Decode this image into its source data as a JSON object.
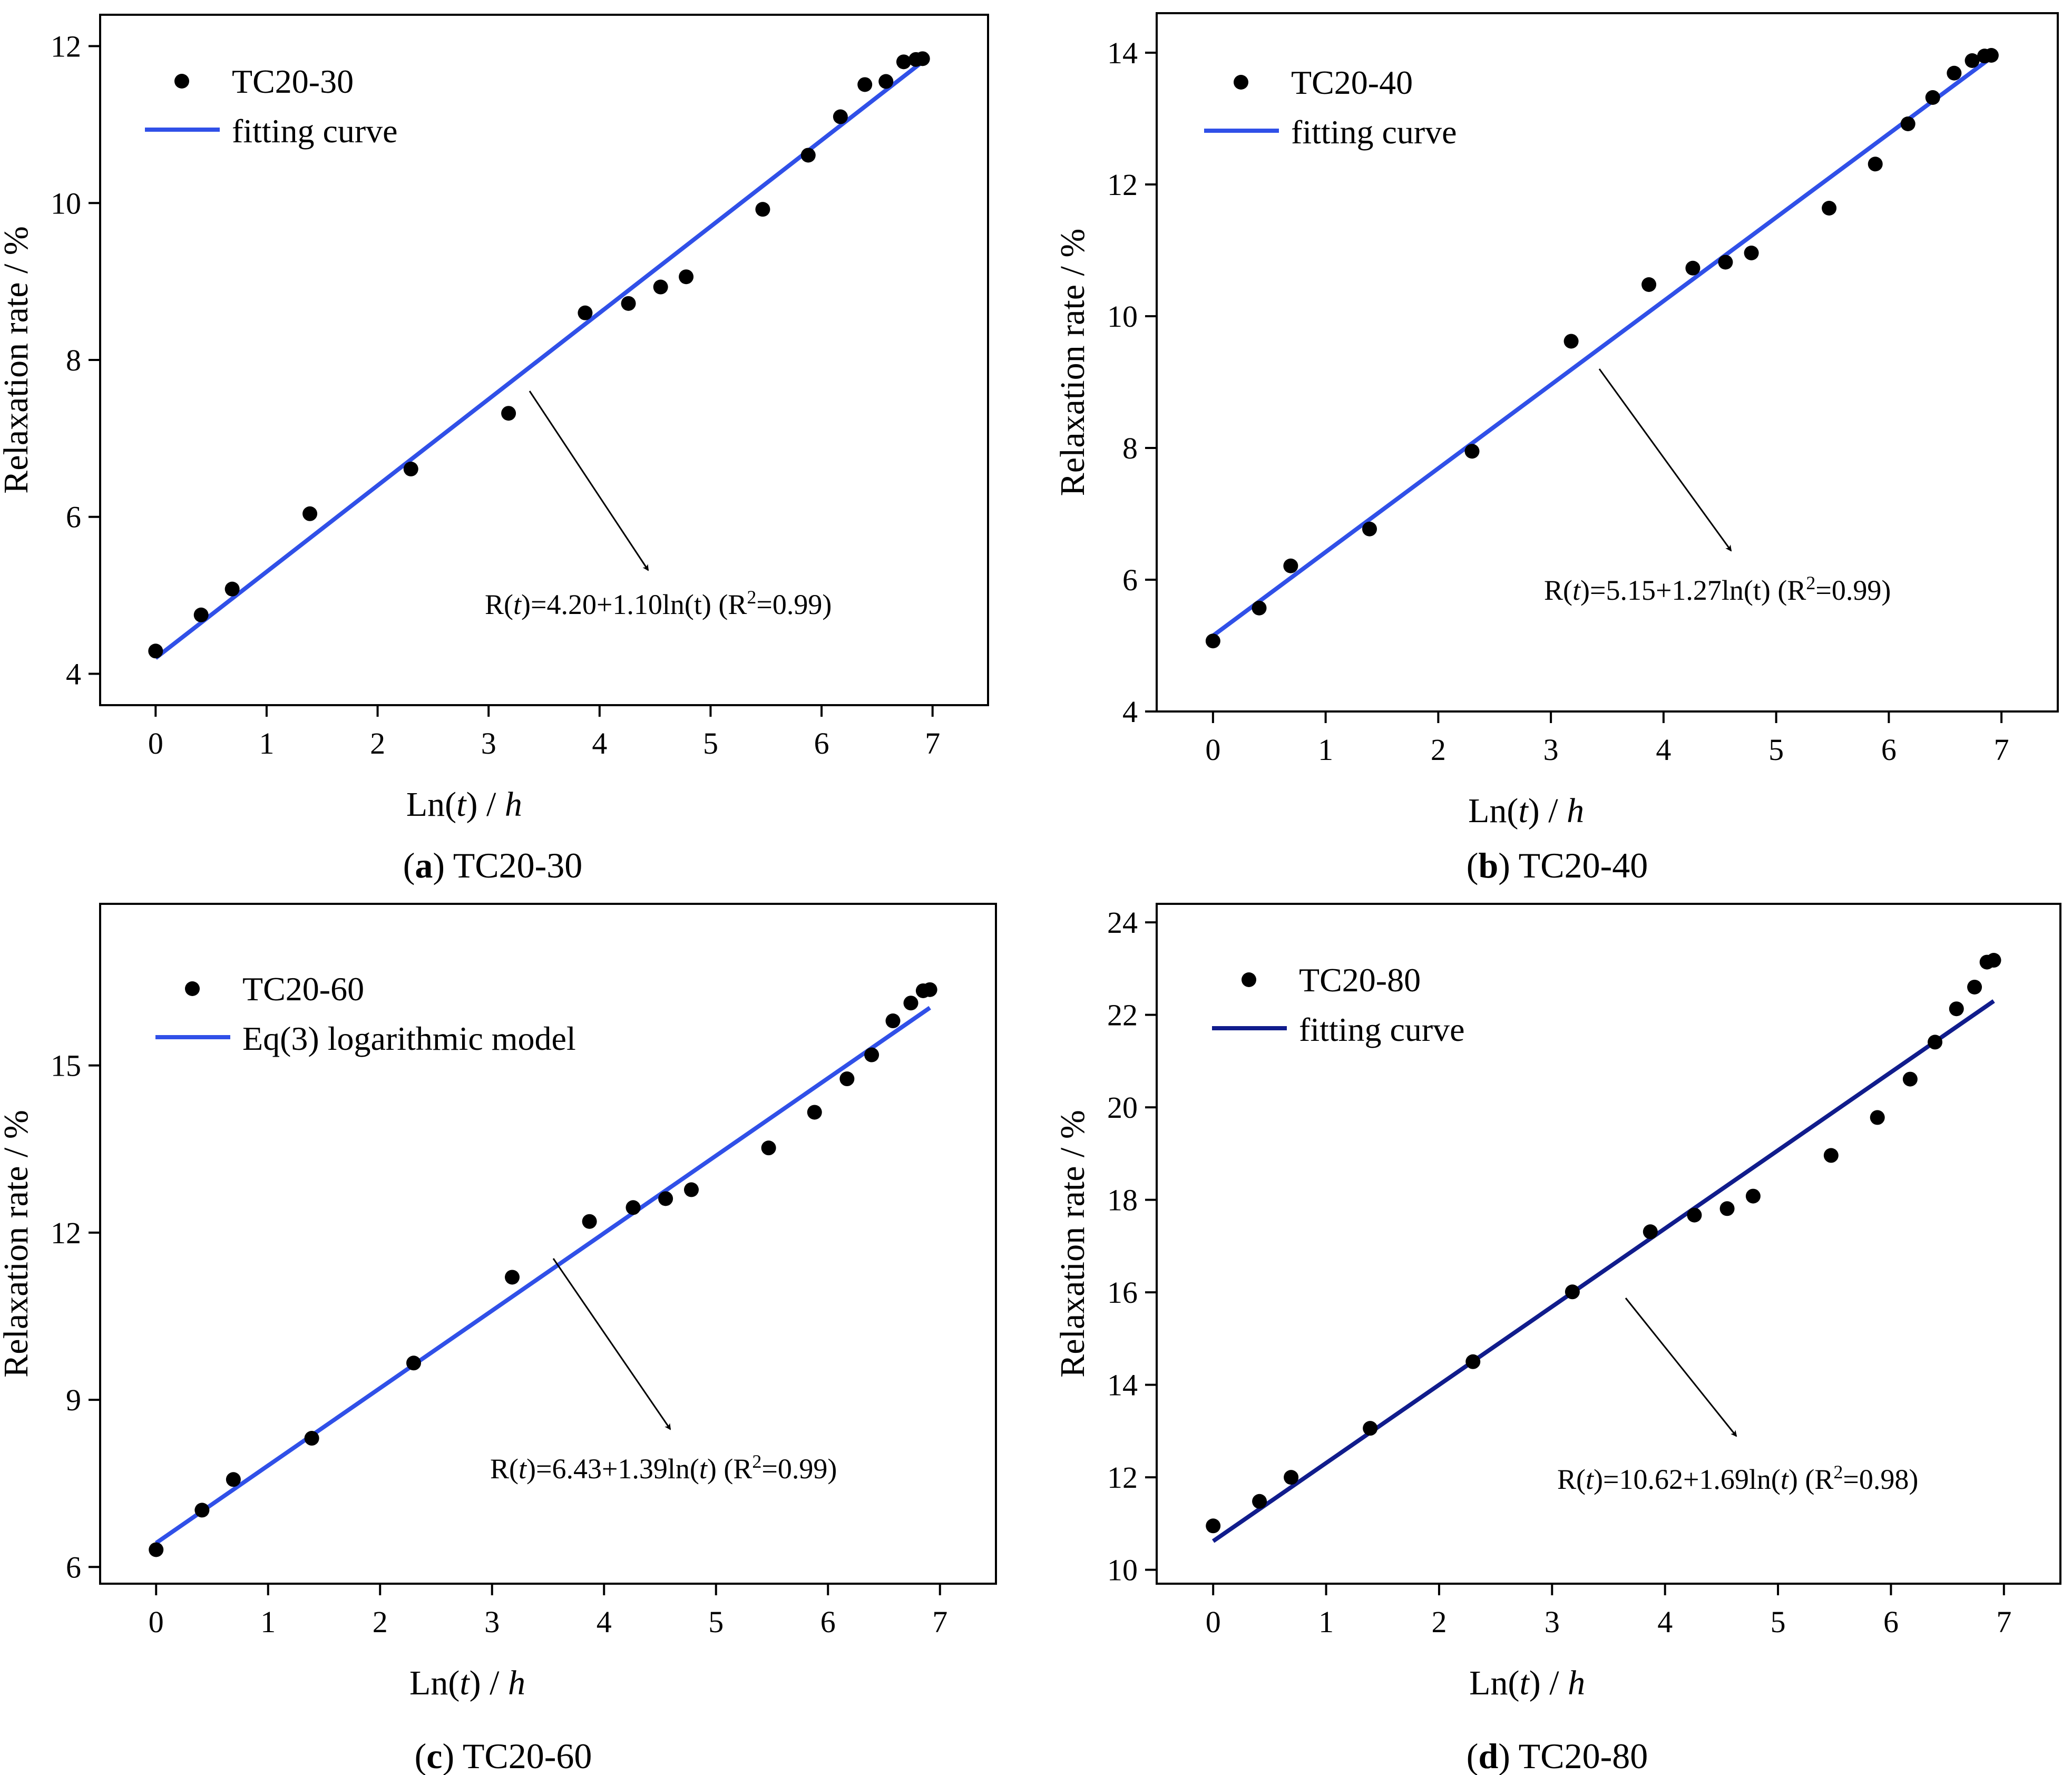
{
  "colors": {
    "fit_light": "#3050e8",
    "fit_dark": "#101c8c",
    "marker": "#000000",
    "axis": "#000000"
  },
  "panels": [
    {
      "caption": {
        "label": "a",
        "title": "TC20-30"
      },
      "legend": {
        "points": "TC20-30",
        "line": "fitting curve"
      },
      "equation": {
        "prefix": "R(",
        "t": "t",
        "main": ")=4.20+1.10ln(t)   (R",
        "sup": "2",
        "suffix": "=0.99)"
      },
      "line_color": "#3050e8"
    },
    {
      "caption": {
        "label": "b",
        "title": "TC20-40"
      },
      "legend": {
        "points": "TC20-40",
        "line": "fitting curve"
      },
      "equation": {
        "prefix": "R(",
        "t": "t",
        "main": ")=5.15+1.27ln(t)   (R",
        "sup": "2",
        "suffix": "=0.99)"
      },
      "line_color": "#3050e8"
    },
    {
      "caption": {
        "label": "c",
        "title": "TC20-60"
      },
      "legend": {
        "points": "TC20-60",
        "line": "Eq(3) logarithmic model"
      },
      "equation": {
        "prefix": "R(",
        "t": "t",
        "main": ")=6.43+1.39ln(",
        "t2": "t",
        "main2": ")   (R",
        "sup": "2",
        "suffix": "=0.99)"
      },
      "line_color": "#3050e8"
    },
    {
      "caption": {
        "label": "d",
        "title": "TC20-80"
      },
      "legend": {
        "points": "TC20-80",
        "line": "fitting curve"
      },
      "equation": {
        "prefix": "R(",
        "t": "t",
        "main": ")=10.62+1.69ln(",
        "t2": "t",
        "main2": ")   (R",
        "sup": "2",
        "suffix": "=0.98)"
      },
      "line_color": "#101c8c"
    }
  ],
  "axis_labels": {
    "x_main": "Ln(",
    "x_t": "t",
    "x_mid": ") / ",
    "x_h": "h",
    "y": "Relaxation rate / %"
  },
  "chart_data": [
    {
      "type": "scatter",
      "title": "TC20-30",
      "xlabel": "Ln(t) / h",
      "ylabel": "Relaxation rate / %",
      "xlim": [
        -0.5,
        7.5
      ],
      "ylim": [
        3.6,
        12.4
      ],
      "xticks": [
        0,
        1,
        2,
        3,
        4,
        5,
        6,
        7
      ],
      "yticks": [
        4,
        6,
        8,
        10,
        12
      ],
      "series": [
        {
          "name": "TC20-30",
          "x": [
            0,
            0.41,
            0.69,
            1.39,
            2.3,
            3.18,
            3.87,
            4.26,
            4.55,
            4.78,
            5.47,
            5.88,
            6.17,
            6.39,
            6.58,
            6.74,
            6.85,
            6.91
          ],
          "y": [
            4.29,
            4.75,
            5.08,
            6.04,
            6.61,
            7.32,
            8.6,
            8.72,
            8.93,
            9.06,
            9.92,
            10.61,
            11.1,
            11.51,
            11.55,
            11.8,
            11.83,
            11.84
          ]
        },
        {
          "name": "fitting curve",
          "a": 4.2,
          "b": 1.1,
          "x_range": [
            0,
            6.91
          ]
        }
      ],
      "annotation": "R(t)=4.20+1.10ln(t)   (R2=0.99)"
    },
    {
      "type": "scatter",
      "title": "TC20-40",
      "xlabel": "Ln(t) / h",
      "ylabel": "Relaxation rate / %",
      "xlim": [
        -0.5,
        7.5
      ],
      "ylim": [
        4,
        14.6
      ],
      "xticks": [
        0,
        1,
        2,
        3,
        4,
        5,
        6,
        7
      ],
      "yticks": [
        4,
        6,
        8,
        10,
        12,
        14
      ],
      "series": [
        {
          "name": "TC20-40",
          "x": [
            0,
            0.41,
            0.69,
            1.39,
            2.3,
            3.18,
            3.87,
            4.26,
            4.55,
            4.78,
            5.47,
            5.88,
            6.17,
            6.39,
            6.58,
            6.74,
            6.85,
            6.91
          ],
          "y": [
            5.07,
            5.57,
            6.21,
            6.77,
            7.95,
            9.62,
            10.48,
            10.73,
            10.82,
            10.96,
            11.64,
            12.31,
            12.92,
            13.32,
            13.69,
            13.88,
            13.95,
            13.96
          ]
        },
        {
          "name": "fitting curve",
          "a": 5.15,
          "b": 1.27,
          "x_range": [
            0,
            6.91
          ]
        }
      ],
      "annotation": "R(t)=5.15+1.27ln(t)   (R2=0.99)"
    },
    {
      "type": "scatter",
      "title": "TC20-60",
      "xlabel": "Ln(t) / h",
      "ylabel": "Relaxation rate / %",
      "xlim": [
        -0.5,
        7.5
      ],
      "ylim": [
        5.7,
        17.9
      ],
      "xticks": [
        0,
        1,
        2,
        3,
        4,
        5,
        6,
        7
      ],
      "yticks": [
        6,
        9,
        12,
        15
      ],
      "series": [
        {
          "name": "TC20-60",
          "x": [
            0,
            0.41,
            0.69,
            1.39,
            2.3,
            3.18,
            3.87,
            4.26,
            4.55,
            4.78,
            5.47,
            5.88,
            6.17,
            6.39,
            6.58,
            6.74,
            6.85,
            6.91
          ],
          "y": [
            6.31,
            7.02,
            7.57,
            8.31,
            9.66,
            11.2,
            12.2,
            12.45,
            12.61,
            12.77,
            13.52,
            14.16,
            14.76,
            15.19,
            15.8,
            16.12,
            16.34,
            16.36
          ]
        },
        {
          "name": "Eq(3) logarithmic model",
          "a": 6.43,
          "b": 1.39,
          "x_range": [
            0,
            6.91
          ]
        }
      ],
      "annotation": "R(t)=6.43+1.39ln(t)   (R2=0.99)"
    },
    {
      "type": "scatter",
      "title": "TC20-80",
      "xlabel": "Ln(t) / h",
      "ylabel": "Relaxation rate / %",
      "xlim": [
        -0.5,
        7.5
      ],
      "ylim": [
        9.7,
        24.4
      ],
      "xticks": [
        0,
        1,
        2,
        3,
        4,
        5,
        6,
        7
      ],
      "yticks": [
        10,
        12,
        14,
        16,
        18,
        20,
        22,
        24
      ],
      "series": [
        {
          "name": "TC20-80",
          "x": [
            0,
            0.41,
            0.69,
            1.39,
            2.3,
            3.18,
            3.87,
            4.26,
            4.55,
            4.78,
            5.47,
            5.88,
            6.17,
            6.39,
            6.58,
            6.74,
            6.85,
            6.91
          ],
          "y": [
            10.95,
            11.48,
            12.0,
            13.06,
            14.5,
            16.01,
            17.31,
            17.67,
            17.81,
            18.08,
            18.96,
            19.78,
            20.61,
            21.41,
            22.13,
            22.6,
            23.14,
            23.18
          ]
        },
        {
          "name": "fitting curve",
          "a": 10.62,
          "b": 1.69,
          "x_range": [
            0,
            6.91
          ]
        }
      ],
      "annotation": "R(t)=10.62+1.69ln(t)   (R2=0.98)"
    }
  ]
}
